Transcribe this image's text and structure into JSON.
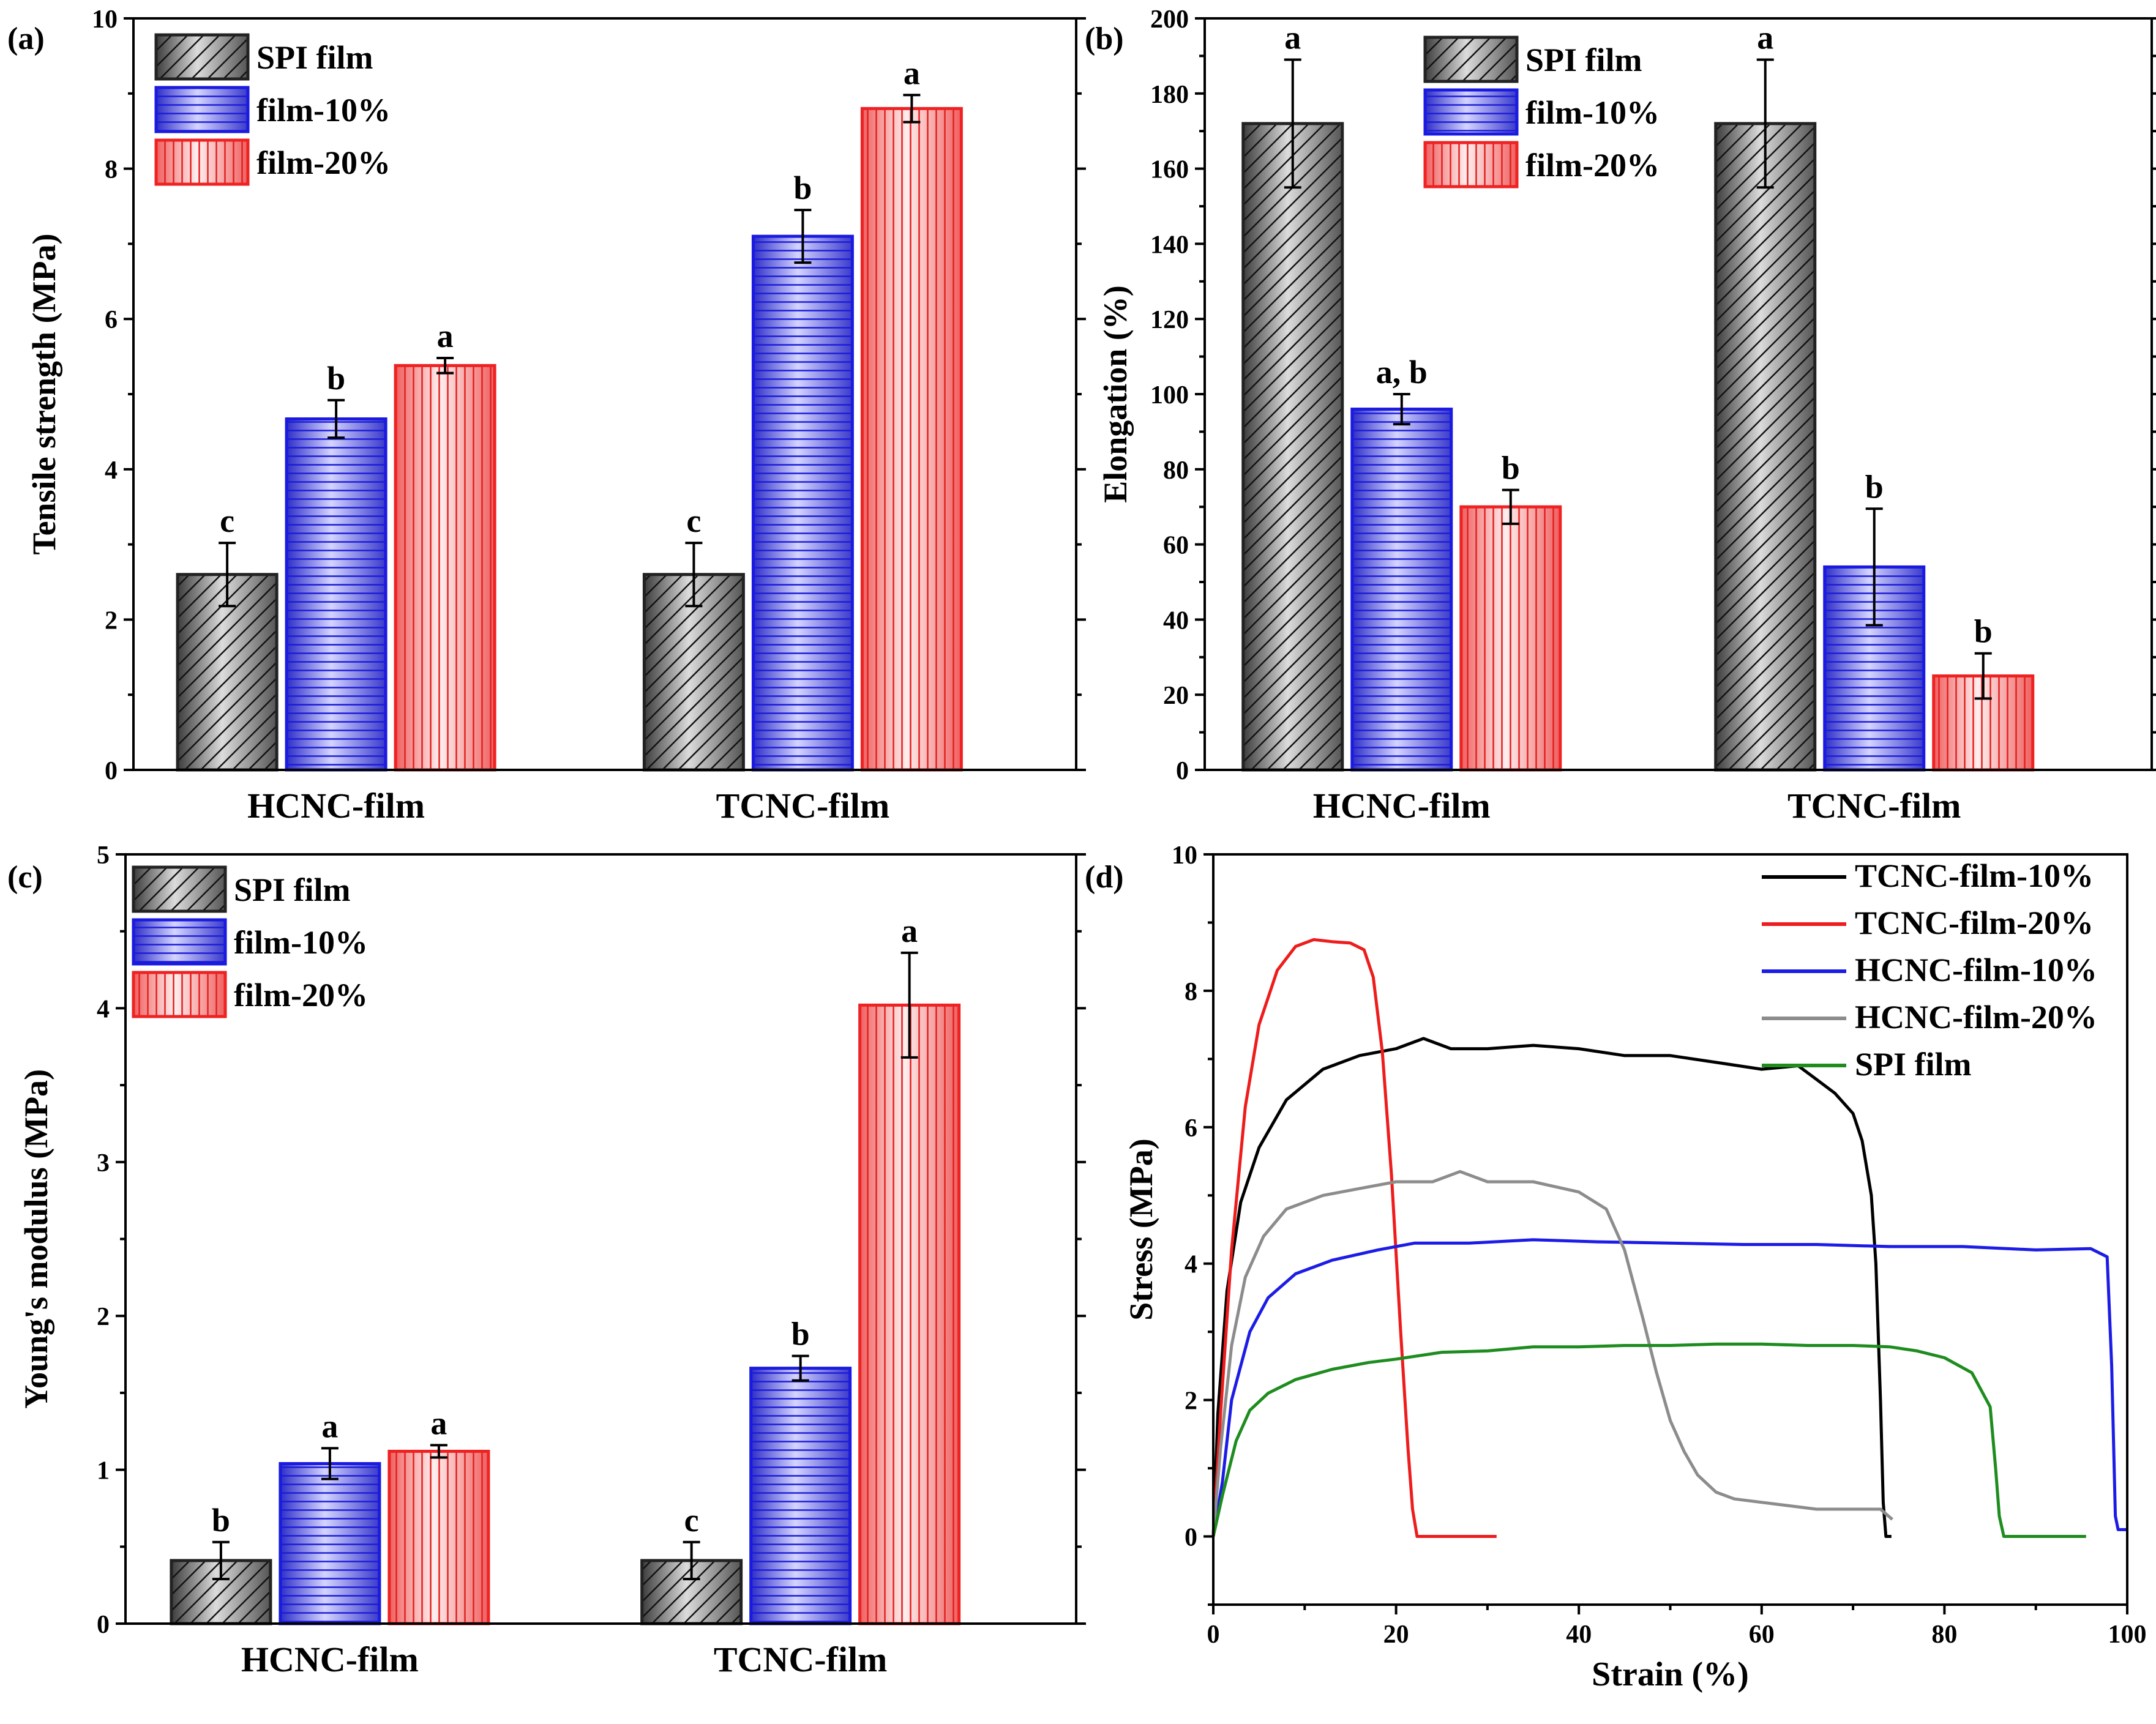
{
  "chart_data": [
    {
      "id": "a",
      "panel_label": "(a)",
      "type": "bar",
      "ylabel": "Tensile strength (MPa)",
      "xlabel": "",
      "ylim": [
        0,
        10
      ],
      "yticks": [
        0,
        2,
        4,
        6,
        8,
        10
      ],
      "categories": [
        "HCNC-film",
        "TCNC-film"
      ],
      "legend": {
        "position": "top-left"
      },
      "series": [
        {
          "name": "SPI film",
          "style": "spi",
          "values": [
            2.6,
            2.6
          ],
          "errors": [
            0.42,
            0.42
          ],
          "letters": [
            "c",
            "c"
          ]
        },
        {
          "name": "film-10%",
          "style": "f10",
          "values": [
            4.67,
            7.1
          ],
          "errors": [
            0.25,
            0.35
          ],
          "letters": [
            "b",
            "b"
          ]
        },
        {
          "name": "film-20%",
          "style": "f20",
          "values": [
            5.38,
            8.8
          ],
          "errors": [
            0.1,
            0.18
          ],
          "letters": [
            "a",
            "a"
          ]
        }
      ]
    },
    {
      "id": "b",
      "panel_label": "(b)",
      "type": "bar",
      "ylabel": "Elongation (%)",
      "xlabel": "",
      "ylim": [
        0,
        200
      ],
      "yticks": [
        0,
        20,
        40,
        60,
        80,
        100,
        120,
        140,
        160,
        180,
        200
      ],
      "categories": [
        "HCNC-film",
        "TCNC-film"
      ],
      "legend": {
        "position": "top-center"
      },
      "series": [
        {
          "name": "SPI film",
          "style": "spi",
          "values": [
            172,
            172
          ],
          "errors": [
            17,
            17
          ],
          "letters": [
            "a",
            "a"
          ]
        },
        {
          "name": "film-10%",
          "style": "f10",
          "values": [
            96,
            54
          ],
          "errors": [
            4,
            15.5
          ],
          "letters": [
            "a, b",
            "b"
          ]
        },
        {
          "name": "film-20%",
          "style": "f20",
          "values": [
            70,
            25
          ],
          "errors": [
            4.5,
            6
          ],
          "letters": [
            "b",
            "b"
          ]
        }
      ]
    },
    {
      "id": "c",
      "panel_label": "(c)",
      "type": "bar",
      "ylabel": "Young's modulus (MPa)",
      "xlabel": "",
      "ylim": [
        0,
        5
      ],
      "yticks": [
        0,
        1,
        2,
        3,
        4,
        5
      ],
      "categories": [
        "HCNC-film",
        "TCNC-film"
      ],
      "legend": {
        "position": "top-left"
      },
      "series": [
        {
          "name": "SPI film",
          "style": "spi",
          "values": [
            0.41,
            0.41
          ],
          "errors": [
            0.12,
            0.12
          ],
          "letters": [
            "b",
            "c"
          ]
        },
        {
          "name": "film-10%",
          "style": "f10",
          "values": [
            1.04,
            1.66
          ],
          "errors": [
            0.1,
            0.08
          ],
          "letters": [
            "a",
            "b"
          ]
        },
        {
          "name": "film-20%",
          "style": "f20",
          "values": [
            1.12,
            4.02
          ],
          "errors": [
            0.04,
            0.34
          ],
          "letters": [
            "a",
            "a"
          ]
        }
      ]
    },
    {
      "id": "d",
      "panel_label": "(d)",
      "type": "line",
      "xlabel": "Strain (%)",
      "ylabel": "Stress (MPa)",
      "xlim": [
        0,
        100
      ],
      "ylim": [
        -1,
        10
      ],
      "xticks": [
        0,
        20,
        40,
        60,
        80,
        100
      ],
      "yticks": [
        0,
        2,
        4,
        6,
        8,
        10
      ],
      "legend": {
        "position": "top-right"
      },
      "series": [
        {
          "name": "TCNC-film-10%",
          "color": "#000000",
          "x": [
            0,
            0.5,
            1.5,
            3,
            5,
            8,
            12,
            16,
            20,
            23,
            26,
            30,
            35,
            40,
            45,
            50,
            55,
            60,
            64,
            66,
            68,
            70,
            71,
            72,
            72.5,
            73,
            73.3,
            73.6,
            74.2
          ],
          "y": [
            0,
            1.8,
            3.6,
            4.9,
            5.7,
            6.4,
            6.85,
            7.05,
            7.15,
            7.3,
            7.15,
            7.15,
            7.2,
            7.15,
            7.05,
            7.05,
            6.95,
            6.85,
            6.9,
            6.7,
            6.5,
            6.2,
            5.8,
            5.0,
            4.0,
            2.0,
            0.5,
            0,
            0
          ]
        },
        {
          "name": "TCNC-film-20%",
          "color": "#ee1c1c",
          "x": [
            0,
            0.8,
            2,
            3.5,
            5,
            7,
            9,
            11,
            13,
            15,
            16.5,
            17.5,
            18.5,
            19.5,
            20.5,
            21.3,
            21.8,
            22.3,
            26,
            31
          ],
          "y": [
            0,
            1.8,
            4.2,
            6.3,
            7.5,
            8.3,
            8.65,
            8.75,
            8.72,
            8.7,
            8.6,
            8.2,
            7.1,
            5.3,
            3.0,
            1.3,
            0.4,
            0,
            0,
            0
          ]
        },
        {
          "name": "HCNC-film-10%",
          "color": "#1c1ce6",
          "x": [
            0,
            1,
            2,
            4,
            6,
            9,
            13,
            18,
            22,
            28,
            35,
            42,
            50,
            58,
            66,
            74,
            82,
            90,
            96,
            97.8,
            98.3,
            98.7,
            99,
            100
          ],
          "y": [
            0,
            0.8,
            2.0,
            3.0,
            3.5,
            3.85,
            4.05,
            4.2,
            4.3,
            4.3,
            4.35,
            4.32,
            4.3,
            4.28,
            4.28,
            4.25,
            4.25,
            4.2,
            4.22,
            4.1,
            2.5,
            0.3,
            0.1,
            0.1
          ]
        },
        {
          "name": "HCNC-film-20%",
          "color": "#8c8c8c",
          "x": [
            0,
            0.8,
            2,
            3.5,
            5.5,
            8,
            12,
            16,
            20,
            24,
            27,
            30,
            35,
            40,
            43,
            45,
            47,
            48.5,
            50,
            51.5,
            53,
            55,
            57,
            60,
            63,
            66,
            70,
            73,
            74.3
          ],
          "y": [
            0,
            1.3,
            2.8,
            3.8,
            4.4,
            4.8,
            5.0,
            5.1,
            5.2,
            5.2,
            5.35,
            5.2,
            5.2,
            5.05,
            4.8,
            4.2,
            3.2,
            2.4,
            1.7,
            1.25,
            0.9,
            0.65,
            0.55,
            0.5,
            0.45,
            0.4,
            0.4,
            0.4,
            0.25
          ]
        },
        {
          "name": "SPI film",
          "color": "#1e8c1e",
          "x": [
            0,
            1,
            2.5,
            4,
            6,
            9,
            13,
            17,
            20,
            25,
            30,
            35,
            40,
            45,
            50,
            55,
            60,
            65,
            70,
            74,
            77,
            80,
            83,
            85,
            85.6,
            86,
            86.5,
            90,
            95.5
          ],
          "y": [
            0,
            0.6,
            1.4,
            1.85,
            2.1,
            2.3,
            2.45,
            2.55,
            2.6,
            2.7,
            2.72,
            2.78,
            2.78,
            2.8,
            2.8,
            2.82,
            2.82,
            2.8,
            2.8,
            2.78,
            2.72,
            2.62,
            2.4,
            1.9,
            1.0,
            0.3,
            0,
            0,
            0
          ]
        }
      ]
    }
  ]
}
